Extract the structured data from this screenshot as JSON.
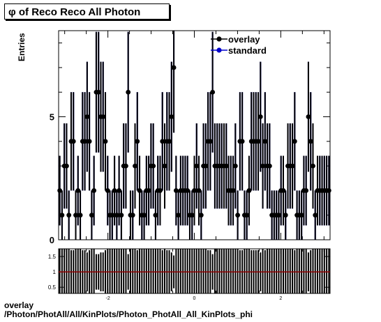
{
  "chart_title": "φ of Reco Reco All Photon",
  "y_axis_label": "Entries",
  "footer": {
    "line1": "overlay",
    "line2": "/Photon/PhotAll/All/KinPlots/Photon_PhotAll_All_KinPlots_phi"
  },
  "colors": {
    "overlay": "#000000",
    "standard": "#0000cc",
    "ratio_line": "#8b0000"
  },
  "chart_data": [
    {
      "type": "scatter",
      "title": "φ of Reco Reco All Photon",
      "xlabel": "",
      "ylabel": "Entries",
      "xlim": [
        -3.14,
        3.14
      ],
      "ylim": [
        0,
        8.5
      ],
      "y_ticks": [
        "0",
        "5"
      ],
      "x_ticks": [],
      "legend_position": "top-right",
      "series": [
        {
          "name": "overlay",
          "values": [
            2,
            1,
            3,
            3,
            1,
            4,
            4,
            1,
            2,
            1,
            4,
            4,
            5,
            4,
            1,
            2,
            6,
            6,
            5,
            5,
            4,
            2,
            1,
            1,
            2,
            1,
            2,
            1,
            3,
            3,
            6,
            1,
            1,
            3,
            4,
            2,
            1,
            1,
            2,
            2,
            3,
            3,
            1,
            2,
            2,
            4,
            3,
            4,
            4,
            5,
            7,
            2,
            1,
            2,
            2,
            2,
            2,
            1,
            1,
            2,
            3,
            2,
            1,
            3,
            3,
            4,
            4,
            6,
            3,
            3,
            3,
            3,
            3,
            3,
            2,
            2,
            2,
            3,
            1,
            4,
            4,
            1,
            1,
            2,
            4,
            4,
            4,
            4,
            5,
            3,
            4,
            3,
            3,
            1,
            1,
            1,
            1,
            2,
            2,
            1,
            3,
            3,
            3,
            4,
            1,
            1,
            1,
            2,
            2,
            5,
            4,
            3,
            1,
            2,
            2,
            2,
            2,
            2,
            2
          ]
        },
        {
          "name": "standard",
          "values": [
            2,
            1,
            3,
            3,
            1,
            4,
            4,
            1,
            2,
            1,
            4,
            4,
            5,
            4,
            1,
            2,
            6,
            6,
            5,
            5,
            4,
            2,
            1,
            1,
            2,
            1,
            2,
            1,
            3,
            3,
            6,
            1,
            1,
            3,
            4,
            2,
            1,
            1,
            2,
            2,
            3,
            3,
            1,
            2,
            2,
            4,
            3,
            4,
            4,
            5,
            7,
            2,
            1,
            2,
            2,
            2,
            2,
            1,
            1,
            2,
            3,
            2,
            1,
            3,
            3,
            4,
            4,
            6,
            3,
            3,
            3,
            3,
            3,
            3,
            2,
            2,
            2,
            3,
            1,
            4,
            4,
            1,
            1,
            2,
            4,
            4,
            4,
            4,
            5,
            3,
            4,
            3,
            3,
            1,
            1,
            1,
            1,
            2,
            2,
            1,
            3,
            3,
            3,
            4,
            1,
            1,
            1,
            2,
            2,
            5,
            4,
            3,
            1,
            2,
            2,
            2,
            2,
            2,
            2
          ]
        }
      ]
    },
    {
      "type": "scatter",
      "title": "",
      "xlabel": "",
      "ylabel": "",
      "xlim": [
        -3.14,
        3.14
      ],
      "ylim": [
        0.3,
        1.75
      ],
      "x_ticks": [
        "-2",
        "0",
        "2"
      ],
      "y_ticks": [
        "0.5",
        "1",
        "1.5"
      ],
      "reference_line": 1,
      "series": [
        {
          "name": "ratio",
          "value": 1
        }
      ]
    }
  ]
}
